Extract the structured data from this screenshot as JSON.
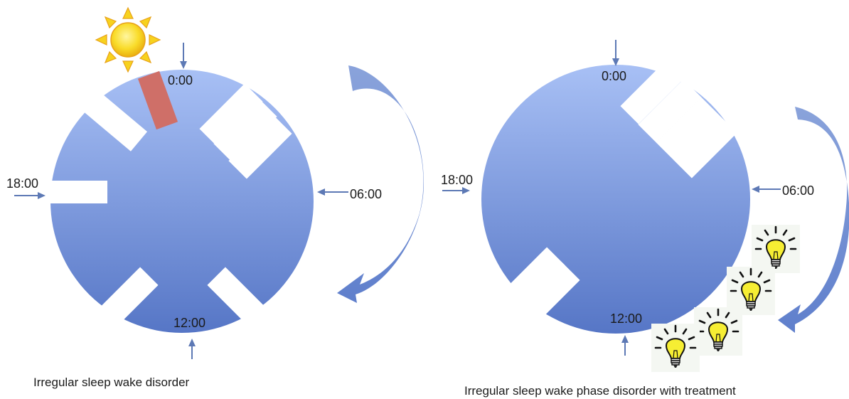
{
  "left_panel": {
    "time_labels": {
      "top": "0:00",
      "right": "06:00",
      "bottom": "12:00",
      "left": "18:00"
    },
    "caption": "Irregular sleep wake disorder",
    "icons": [
      "sun-icon"
    ]
  },
  "right_panel": {
    "time_labels": {
      "top": "0:00",
      "right": "06:00",
      "bottom": "12:00",
      "left": "18:00"
    },
    "caption": "Irregular sleep wake phase disorder with treatment",
    "icons": [
      "lightbulb-icon",
      "lightbulb-icon",
      "lightbulb-icon",
      "lightbulb-icon"
    ]
  },
  "colors": {
    "circle_top": "#a8c0f5",
    "circle_bottom": "#5878c8",
    "arrow": "#7090d0",
    "highlight_block": "#cf6f68",
    "sun": "#f7d21e",
    "bulb": "#f6ee33",
    "pointer": "#5d79b5"
  }
}
